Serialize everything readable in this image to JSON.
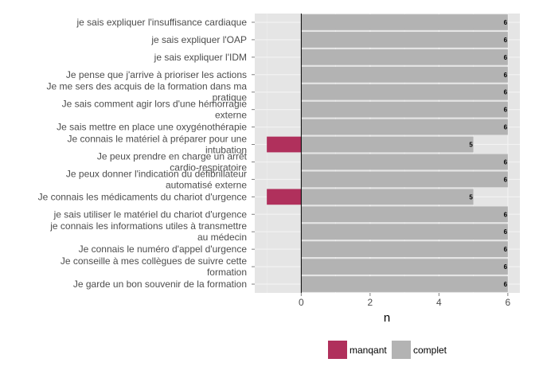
{
  "chart_data": {
    "type": "bar",
    "orientation": "horizontal",
    "xlabel": "n",
    "xlim": [
      -1.35,
      6.35
    ],
    "xticks": [
      0,
      2,
      4,
      6
    ],
    "grid": true,
    "legend_position": "bottom",
    "categories": [
      "je sais expliquer l'insuffisance cardiaque",
      "je sais expliquer l'OAP",
      "je sais expliquer l'IDM",
      "Je pense que j'arrive à prioriser les actions",
      "Je me sers des acquis de la formation dans ma pratique",
      "Je sais comment agir lors d'une hémorragie externe",
      "Je sais mettre en place une oxygénothérapie",
      "Je connais le matériel à préparer pour une intubation",
      "Je peux prendre en charge un arrêt cardio-respiratoire",
      "Je peux donner l'indication du défibrillateur automatisé externe",
      "Je connais les médicaments du chariot d'urgence",
      "je sais utiliser le matériel du chariot d'urgence",
      "je connais les informations utiles à transmettre au médecin",
      "Je connais le numéro d'appel d'urgence",
      "Je conseille à mes collègues de suivre cette formation",
      "Je garde un bon souvenir de la formation"
    ],
    "category_lines": [
      [
        "je sais expliquer l'insuffisance cardiaque"
      ],
      [
        "je sais expliquer l'OAP"
      ],
      [
        "je sais expliquer l'IDM"
      ],
      [
        "Je pense que j'arrive à prioriser les actions"
      ],
      [
        "Je me sers des acquis de la formation dans ma",
        "pratique"
      ],
      [
        "Je sais comment agir lors d'une hémorragie",
        "externe"
      ],
      [
        "Je sais mettre en place une oxygénothérapie"
      ],
      [
        "Je connais le matériel à préparer pour une",
        "intubation"
      ],
      [
        "Je peux prendre en charge un arrêt",
        "cardio-respiratoire"
      ],
      [
        "Je peux donner l'indication du défibrillateur",
        "automatisé externe"
      ],
      [
        "Je connais les médicaments du chariot d'urgence"
      ],
      [
        "je sais utiliser le matériel du chariot d'urgence"
      ],
      [
        "je connais les informations utiles à transmettre",
        "au médecin"
      ],
      [
        "Je connais le numéro d'appel d'urgence"
      ],
      [
        "Je conseille à mes collègues de suivre cette",
        "formation"
      ],
      [
        "Je garde un bon souvenir de la formation"
      ]
    ],
    "series": [
      {
        "name": "manqant",
        "color": "#b0305c",
        "values": [
          0,
          0,
          0,
          0,
          0,
          0,
          0,
          -1,
          0,
          0,
          -1,
          0,
          0,
          0,
          0,
          0
        ]
      },
      {
        "name": "complet",
        "color": "#b3b3b3",
        "values": [
          6,
          6,
          6,
          6,
          6,
          6,
          6,
          5,
          6,
          6,
          5,
          6,
          6,
          6,
          6,
          6
        ]
      }
    ],
    "value_labels": [
      "6",
      "6",
      "6",
      "6",
      "6",
      "6",
      "6",
      "5",
      "6",
      "6",
      "5",
      "6",
      "6",
      "6",
      "6",
      "6"
    ]
  }
}
